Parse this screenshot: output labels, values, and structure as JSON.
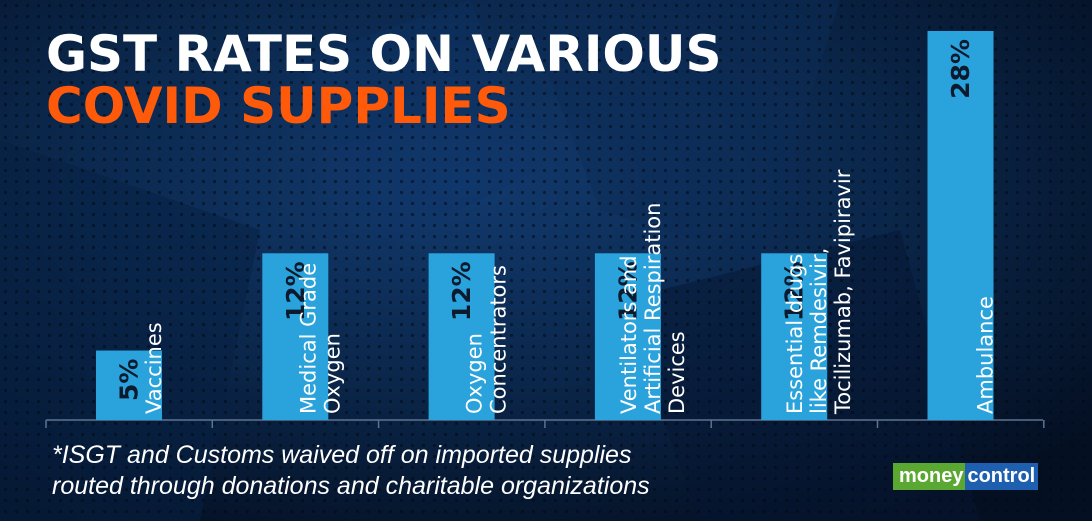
{
  "header": {
    "title_line1": "GST RATES ON VARIOUS",
    "title_line2": "COVID SUPPLIES"
  },
  "colors": {
    "bar": "#2aa3dc",
    "title_accent": "#ff5a0a",
    "background": "#061a33",
    "axis": "#5d7390",
    "value_text": "#0c1a2e",
    "label_text": "#ffffff"
  },
  "chart_data": {
    "type": "bar",
    "categories": [
      "Vaccines",
      "Medical Grade Oxygen",
      "Oxygen Concentrators",
      "Ventilators and Artificial Respiration Devices",
      "Essential drugs like Remdesivir, Tocilizumab, Favipiravir",
      "Ambulance"
    ],
    "category_label_lines": [
      [
        "Vaccines"
      ],
      [
        "Medical Grade",
        "Oxygen"
      ],
      [
        "Oxygen",
        "Concentrators"
      ],
      [
        "Ventilators and",
        "Artificial Respiration",
        "Devices"
      ],
      [
        "Essential drugs",
        "like Remdesivir,",
        "Tocilizumab, Favipiravir"
      ],
      [
        "Ambulance"
      ]
    ],
    "values": [
      5,
      12,
      12,
      12,
      12,
      28
    ],
    "value_labels": [
      "5%",
      "12%",
      "12%",
      "12%",
      "12%",
      "28%"
    ],
    "ylim": [
      0,
      28
    ],
    "grid": false,
    "legend": "none",
    "title": "GST RATES ON VARIOUS COVID SUPPLIES"
  },
  "footnote": {
    "line1": "*ISGT and Customs waived off on imported supplies",
    "line2": "routed through donations and charitable organizations"
  },
  "logo": {
    "part1": "money",
    "part2": "control"
  }
}
